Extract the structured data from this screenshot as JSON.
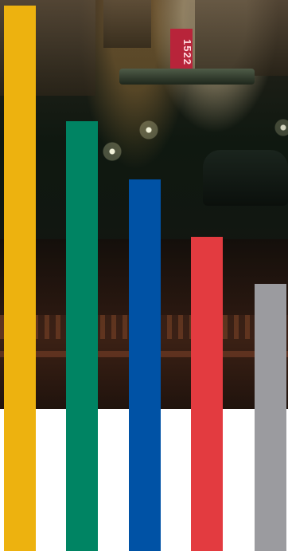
{
  "photo": {
    "sign_text": "1522"
  },
  "bars": [
    {
      "name": "yellow",
      "color": "#EDB20F",
      "level": 0.99
    },
    {
      "name": "green",
      "color": "#008463",
      "level": 0.78
    },
    {
      "name": "blue",
      "color": "#0052A5",
      "level": 0.675
    },
    {
      "name": "red",
      "color": "#E33B40",
      "level": 0.57
    },
    {
      "name": "gray",
      "color": "#9B9B9F",
      "level": 0.485
    }
  ]
}
